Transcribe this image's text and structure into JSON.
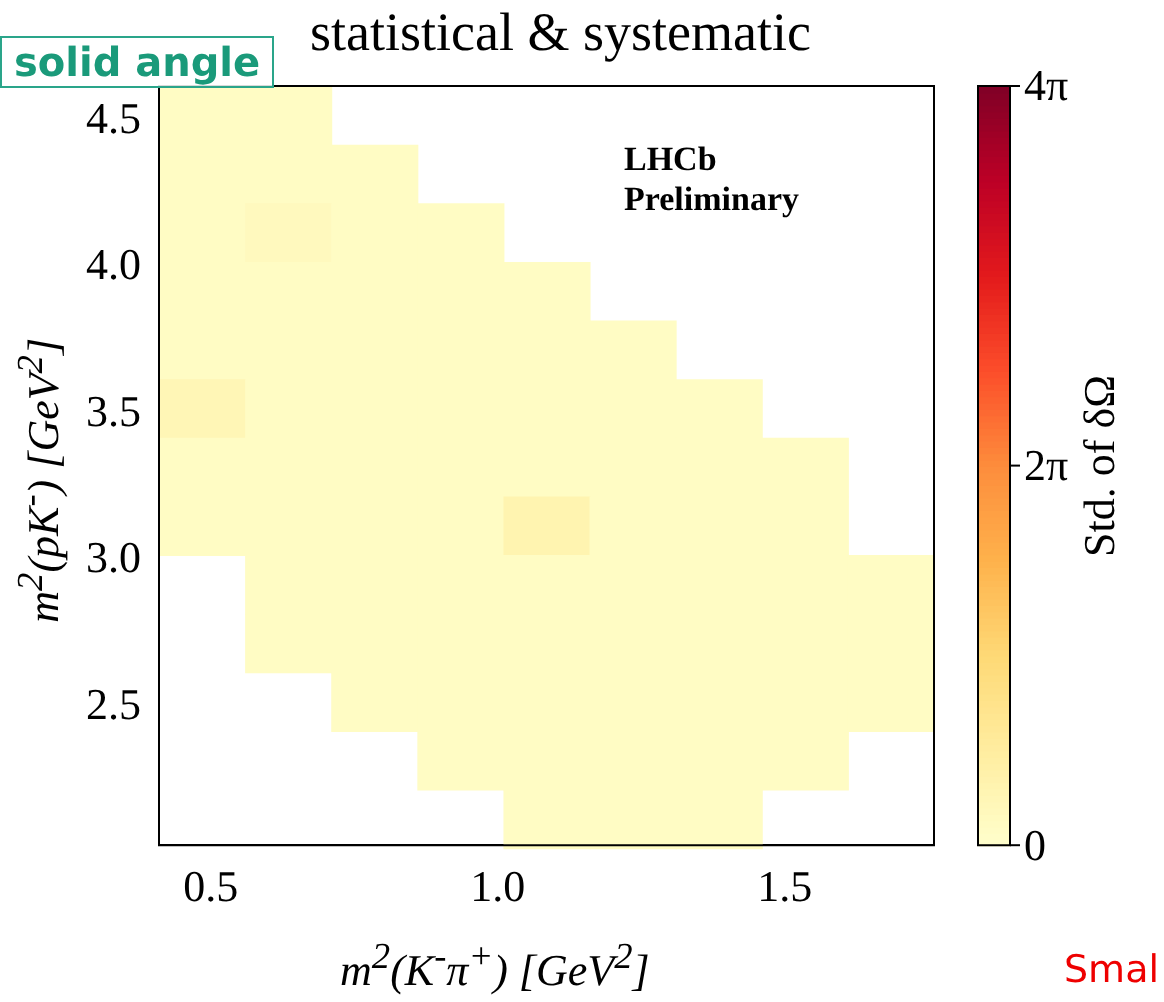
{
  "chart_data": {
    "type": "heatmap",
    "title": "statistical & systematic",
    "xlabel": "m$^{2}$(K$^{-}$π$^{+}$) [GeV$^{2}$]",
    "ylabel": "m$^{2}$(pK$^{-}$) [GeV$^{2}$]",
    "clabel": "Std. of δΩ",
    "annotations": [
      "solid angle",
      "LHCb\nPreliminary",
      "Smal"
    ],
    "x": [
      0.485,
      0.635,
      0.785,
      0.935,
      1.085,
      1.235,
      1.385,
      1.535,
      1.685
    ],
    "y": [
      4.52,
      4.32,
      4.12,
      3.92,
      3.72,
      3.52,
      3.32,
      3.12,
      2.92,
      2.72,
      2.52,
      2.32,
      2.12
    ],
    "xlim": [
      0.41,
      1.76
    ],
    "xticks": [
      0.5,
      {
        "value": 1,
        "label": "1.0"
      },
      1.5
    ],
    "ylim": [
      2.03,
      4.62
    ],
    "yticks": [
      2.5,
      {
        "value": 3,
        "label": "3.0"
      },
      3.5,
      {
        "value": 4,
        "label": "4.0"
      },
      4.5
    ],
    "clim": [
      0,
      12.566
    ],
    "cticks": [
      {
        "value": 0,
        "label": "0"
      },
      {
        "value": 6.283,
        "label": "2π"
      },
      {
        "value": 12.566,
        "label": "4π"
      }
    ],
    "cells": [
      [
        0.3,
        0.3,
        null,
        null,
        null,
        null,
        null,
        null,
        null
      ],
      [
        0.3,
        0.3,
        0.3,
        null,
        null,
        null,
        null,
        null,
        null
      ],
      [
        0.3,
        0.5,
        0.3,
        0.3,
        null,
        null,
        null,
        null,
        null
      ],
      [
        0.3,
        0.3,
        0.3,
        0.3,
        0.3,
        null,
        null,
        null,
        null
      ],
      [
        0.3,
        0.3,
        0.3,
        0.3,
        0.3,
        0.3,
        null,
        null,
        null
      ],
      [
        0.8,
        0.3,
        0.3,
        0.3,
        0.3,
        0.3,
        0.3,
        null,
        null
      ],
      [
        0.3,
        0.3,
        0.3,
        0.3,
        0.3,
        0.3,
        0.3,
        0.3,
        null
      ],
      [
        0.3,
        0.3,
        0.3,
        0.3,
        1.0,
        0.3,
        0.3,
        0.3,
        null
      ],
      [
        null,
        0.3,
        0.3,
        0.3,
        0.3,
        0.3,
        0.3,
        0.3,
        0.3
      ],
      [
        null,
        0.3,
        0.3,
        0.3,
        0.3,
        0.3,
        0.3,
        0.3,
        0.3
      ],
      [
        null,
        null,
        0.3,
        0.3,
        0.3,
        0.3,
        0.3,
        0.3,
        0.3
      ],
      [
        null,
        null,
        null,
        0.3,
        0.3,
        0.3,
        0.3,
        0.3,
        null
      ],
      [
        null,
        null,
        null,
        null,
        0.3,
        0.3,
        0.3,
        null,
        null
      ]
    ]
  }
}
